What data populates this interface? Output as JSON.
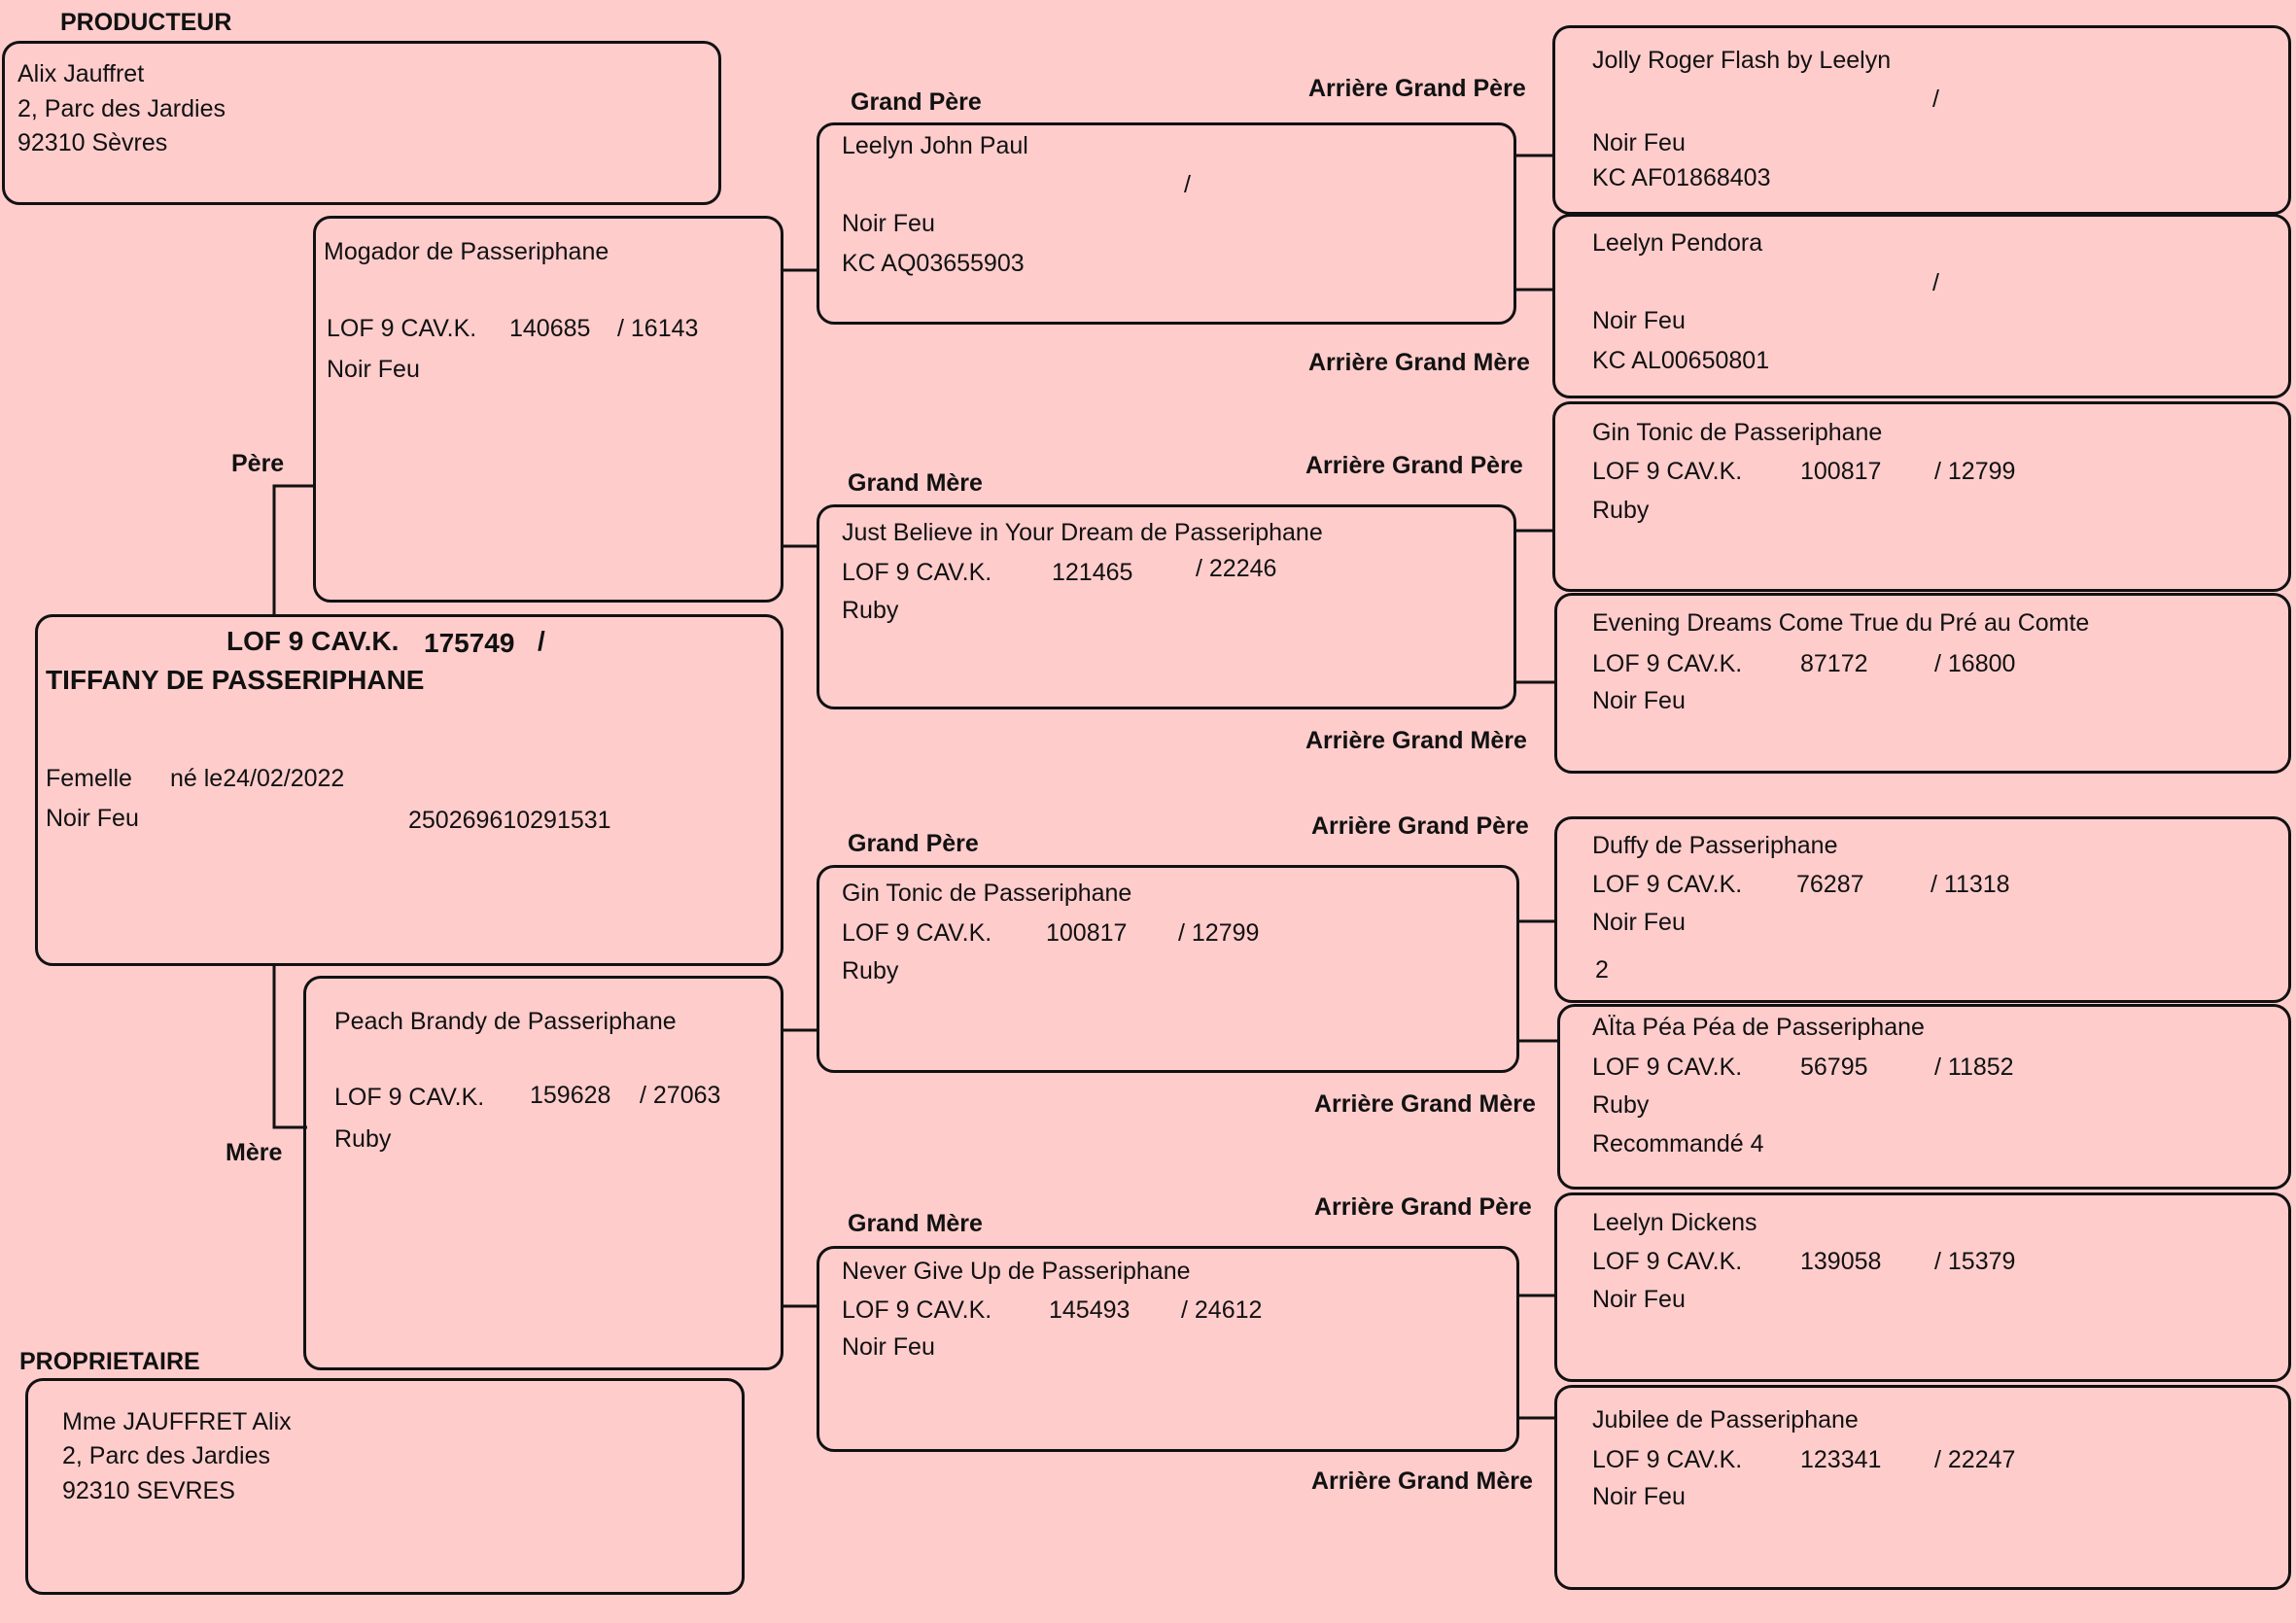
{
  "labels": {
    "producteur": "PRODUCTEUR",
    "proprietaire": "PROPRIETAIRE",
    "pere": "Père",
    "mere": "Mère",
    "grand_pere": "Grand Père",
    "grand_mere": "Grand Mère",
    "arriere_grand_pere": "Arrière Grand Père",
    "arriere_grand_mere": "Arrière Grand Mère"
  },
  "producteur": {
    "name": "Alix Jauffret",
    "address": "2, Parc des Jardies",
    "city": "92310 Sèvres"
  },
  "proprietaire": {
    "name": "Mme JAUFFRET Alix",
    "address": "2, Parc des Jardies",
    "city": "92310 SEVRES"
  },
  "subject": {
    "lof": "LOF 9 CAV.K.",
    "number": "175749",
    "slash": "/",
    "name": "TIFFANY DE PASSERIPHANE",
    "sex": "Femelle",
    "born": "né le24/02/2022",
    "color": "Noir Feu",
    "chip": "250269610291531"
  },
  "pere": {
    "name": "Mogador de Passeriphane",
    "lof": "LOF 9 CAV.K.",
    "num": "140685",
    "reg": "/ 16143",
    "color": "Noir Feu"
  },
  "mere": {
    "name": "Peach Brandy de Passeriphane",
    "lof": "LOF 9 CAV.K.",
    "num": "159628",
    "reg": "/ 27063",
    "color": "Ruby"
  },
  "gp1": {
    "name": "Leelyn John Paul",
    "slash": "/",
    "color": "Noir Feu",
    "reg": "KC AQ03655903"
  },
  "gm1": {
    "name": "Just Believe in Your Dream de Passeriphane",
    "lof": "LOF 9 CAV.K.",
    "num": "121465",
    "reg": "/ 22246",
    "color": "Ruby"
  },
  "gp2": {
    "name": "Gin Tonic de Passeriphane",
    "lof": "LOF 9 CAV.K.",
    "num": "100817",
    "reg": "/ 12799",
    "color": "Ruby"
  },
  "gm2": {
    "name": "Never Give Up de Passeriphane",
    "lof": "LOF 9 CAV.K.",
    "num": "145493",
    "reg": "/ 24612",
    "color": "Noir Feu"
  },
  "agp1": {
    "name": "Jolly Roger Flash by Leelyn",
    "slash": "/",
    "color": "Noir Feu",
    "reg": "KC AF01868403"
  },
  "agm1": {
    "name": "Leelyn Pendora",
    "slash": "/",
    "color": "Noir Feu",
    "reg": "KC AL00650801"
  },
  "agp2": {
    "name": "Gin Tonic de Passeriphane",
    "lof": "LOF 9 CAV.K.",
    "num": "100817",
    "reg": "/ 12799",
    "color": "Ruby"
  },
  "agm2": {
    "name": "Evening Dreams Come True du Pré au Comte",
    "lof": "LOF 9 CAV.K.",
    "num": "87172",
    "reg": "/ 16800",
    "color": "Noir Feu"
  },
  "agp3": {
    "name": "Duffy de Passeriphane",
    "lof": "LOF 9 CAV.K.",
    "num": "76287",
    "reg": "/ 11318",
    "color": "Noir Feu",
    "extra": "2"
  },
  "agm3": {
    "name": "AÏta Péa Péa de Passeriphane",
    "lof": "LOF 9 CAV.K.",
    "num": "56795",
    "reg": "/ 11852",
    "color": "Ruby",
    "extra": "Recommandé 4"
  },
  "agp4": {
    "name": "Leelyn Dickens",
    "lof": "LOF 9 CAV.K.",
    "num": "139058",
    "reg": "/ 15379",
    "color": "Noir Feu"
  },
  "agm4": {
    "name": "Jubilee de Passeriphane",
    "lof": "LOF 9 CAV.K.",
    "num": "123341",
    "reg": "/ 22247",
    "color": "Noir Feu"
  }
}
